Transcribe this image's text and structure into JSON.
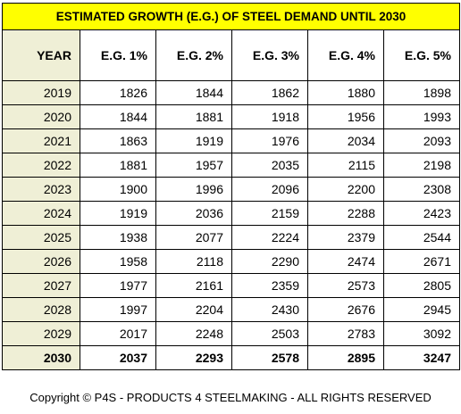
{
  "table": {
    "title": "ESTIMATED GROWTH (E.G.) OF STEEL DEMAND UNTIL 2030",
    "headers": [
      "YEAR",
      "E.G. 1%",
      "E.G. 2%",
      "E.G. 3%",
      "E.G. 4%",
      "E.G. 5%"
    ],
    "rows": [
      [
        "2019",
        "1826",
        "1844",
        "1862",
        "1880",
        "1898"
      ],
      [
        "2020",
        "1844",
        "1881",
        "1918",
        "1956",
        "1993"
      ],
      [
        "2021",
        "1863",
        "1919",
        "1976",
        "2034",
        "2093"
      ],
      [
        "2022",
        "1881",
        "1957",
        "2035",
        "2115",
        "2198"
      ],
      [
        "2023",
        "1900",
        "1996",
        "2096",
        "2200",
        "2308"
      ],
      [
        "2024",
        "1919",
        "2036",
        "2159",
        "2288",
        "2423"
      ],
      [
        "2025",
        "1938",
        "2077",
        "2224",
        "2379",
        "2544"
      ],
      [
        "2026",
        "1958",
        "2118",
        "2290",
        "2474",
        "2671"
      ],
      [
        "2027",
        "1977",
        "2161",
        "2359",
        "2573",
        "2805"
      ],
      [
        "2028",
        "1997",
        "2204",
        "2430",
        "2676",
        "2945"
      ],
      [
        "2029",
        "2017",
        "2248",
        "2503",
        "2783",
        "3092"
      ],
      [
        "2030",
        "2037",
        "2293",
        "2578",
        "2895",
        "3247"
      ]
    ]
  },
  "footer": {
    "copyright": "Copyright © P4S - PRODUCTS 4 STEELMAKING - ALL RIGHTS RESERVED"
  },
  "colors": {
    "title_background": "#ffff00",
    "year_column_background": "#efefd6",
    "border": "#000000"
  }
}
